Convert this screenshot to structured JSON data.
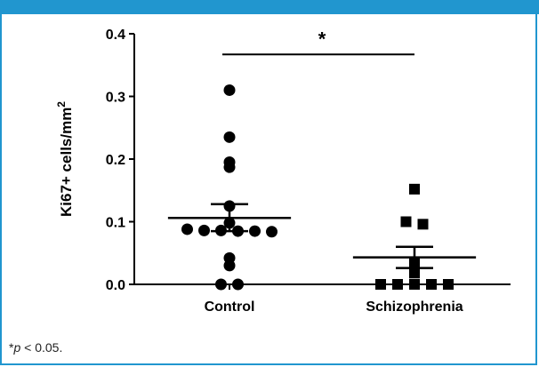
{
  "footnote": {
    "star": "*",
    "p": "p",
    "rest": " < 0.05."
  },
  "chart_data": {
    "type": "scatter",
    "ylabel": "Ki67+ cells/mm",
    "ylabel_sup": "2",
    "ylim": [
      0,
      0.4
    ],
    "yticks": [
      0.0,
      0.1,
      0.2,
      0.3,
      0.4
    ],
    "ytick_labels": [
      "0.0",
      "0.1",
      "0.2",
      "0.3",
      "0.4"
    ],
    "categories": [
      "Control",
      "Schizophrenia"
    ],
    "series": [
      {
        "category": "Control",
        "marker": "circle",
        "values": [
          0.31,
          0.235,
          0.195,
          0.187,
          0.125,
          0.098,
          0.088,
          0.086,
          0.086,
          0.085,
          0.085,
          0.084,
          0.042,
          0.03,
          0.0,
          0.0
        ],
        "mean": 0.106,
        "sem_upper": 0.128,
        "sem_lower": 0.085
      },
      {
        "category": "Schizophrenia",
        "marker": "square",
        "values": [
          0.152,
          0.1,
          0.096,
          0.035,
          0.025,
          0.018,
          0.0,
          0.0,
          0.0,
          0.0,
          0.0
        ],
        "mean": 0.043,
        "sem_upper": 0.06,
        "sem_lower": 0.026
      }
    ],
    "significance": {
      "label": "*",
      "between": [
        "Control",
        "Schizophrenia"
      ],
      "y": 0.367
    },
    "colors": {
      "marks": "#000000",
      "frame": "#2196cf"
    }
  }
}
